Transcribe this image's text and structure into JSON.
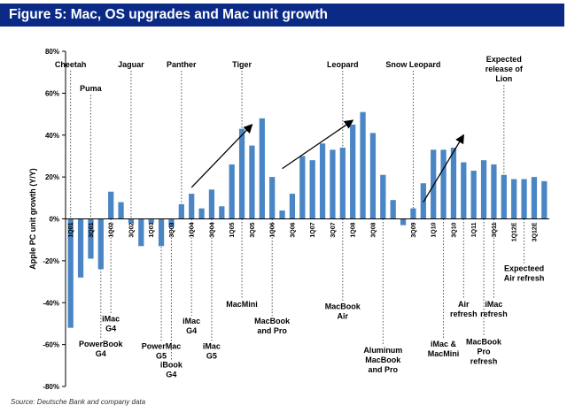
{
  "header": {
    "title": "Figure 5: Mac, OS upgrades and Mac unit growth"
  },
  "source": "Source: Deutsche Bank and company data",
  "colors": {
    "title_bg": "#0a2a86",
    "bar": "#4a86c5",
    "text": "#000000"
  },
  "chart_data": {
    "type": "bar",
    "title": "Figure 5: Mac, OS upgrades and Mac unit growth",
    "ylabel": "Apple PC unit growth (Y/Y)",
    "xlabel": "",
    "ylim": [
      -80,
      80
    ],
    "yticks": [
      "-80%",
      "-60%",
      "-40%",
      "-20%",
      "0%",
      "20%",
      "40%",
      "60%",
      "80%"
    ],
    "grid": false,
    "bars": [
      {
        "label": "1Q01",
        "value": -52
      },
      {
        "label": "",
        "value": -28
      },
      {
        "label": "3Q01",
        "value": -19
      },
      {
        "label": "",
        "value": -24
      },
      {
        "label": "1Q02",
        "value": 13
      },
      {
        "label": "",
        "value": 8
      },
      {
        "label": "3Q02",
        "value": -2
      },
      {
        "label": "",
        "value": -13
      },
      {
        "label": "1Q03",
        "value": -2
      },
      {
        "label": "",
        "value": -13
      },
      {
        "label": "3Q03",
        "value": -4
      },
      {
        "label": "",
        "value": 7
      },
      {
        "label": "1Q04",
        "value": 12
      },
      {
        "label": "",
        "value": 5
      },
      {
        "label": "3Q04",
        "value": 14
      },
      {
        "label": "",
        "value": 6
      },
      {
        "label": "1Q05",
        "value": 26
      },
      {
        "label": "",
        "value": 43
      },
      {
        "label": "3Q05",
        "value": 35
      },
      {
        "label": "",
        "value": 48
      },
      {
        "label": "1Q06",
        "value": 20
      },
      {
        "label": "",
        "value": 4
      },
      {
        "label": "3Q06",
        "value": 12
      },
      {
        "label": "",
        "value": 30
      },
      {
        "label": "1Q07",
        "value": 28
      },
      {
        "label": "",
        "value": 36
      },
      {
        "label": "3Q07",
        "value": 33
      },
      {
        "label": "",
        "value": 34
      },
      {
        "label": "1Q08",
        "value": 45
      },
      {
        "label": "",
        "value": 51
      },
      {
        "label": "3Q08",
        "value": 41
      },
      {
        "label": "",
        "value": 21
      },
      {
        "label": "",
        "value": 9
      },
      {
        "label": "",
        "value": -3
      },
      {
        "label": "3Q09",
        "value": 5
      },
      {
        "label": "",
        "value": 17
      },
      {
        "label": "1Q10",
        "value": 33
      },
      {
        "label": "",
        "value": 33
      },
      {
        "label": "3Q10",
        "value": 34
      },
      {
        "label": "",
        "value": 27
      },
      {
        "label": "1Q11",
        "value": 23
      },
      {
        "label": "",
        "value": 28
      },
      {
        "label": "3Q11",
        "value": 26
      },
      {
        "label": "",
        "value": 21
      },
      {
        "label": "1Q12E",
        "value": 19
      },
      {
        "label": "",
        "value": 19
      },
      {
        "label": "3Q12E",
        "value": 20
      },
      {
        "label": "",
        "value": 18
      }
    ],
    "annotations": [
      {
        "text": [
          "Cheetah"
        ],
        "bar": 0,
        "pos": "top",
        "row": 0
      },
      {
        "text": [
          "Puma"
        ],
        "bar": 2,
        "pos": "top",
        "row": 1
      },
      {
        "text": [
          "Jaguar"
        ],
        "bar": 6,
        "pos": "top",
        "row": 0
      },
      {
        "text": [
          "Panther"
        ],
        "bar": 11,
        "pos": "top",
        "row": 0
      },
      {
        "text": [
          "Tiger"
        ],
        "bar": 17,
        "pos": "top",
        "row": 0
      },
      {
        "text": [
          "Leopard"
        ],
        "bar": 27,
        "pos": "top",
        "row": 0
      },
      {
        "text": [
          "Snow Leopard"
        ],
        "bar": 34,
        "pos": "top",
        "row": 0
      },
      {
        "text": [
          "Expected",
          "release of",
          "Lion"
        ],
        "bar": 43,
        "pos": "top",
        "row": -1
      },
      {
        "text": [
          "PowerBook",
          "G4"
        ],
        "bar": 3,
        "pos": "bottom",
        "y": -61
      },
      {
        "text": [
          "iMac",
          "G4"
        ],
        "bar": 4,
        "pos": "bottom",
        "y": -49
      },
      {
        "text": [
          "PowerMac",
          "G5"
        ],
        "bar": 9,
        "pos": "bottom",
        "y": -62
      },
      {
        "text": [
          "iBook",
          "G4"
        ],
        "bar": 10,
        "pos": "bottom",
        "y": -71
      },
      {
        "text": [
          "iMac",
          "G4"
        ],
        "bar": 12,
        "pos": "bottom",
        "y": -50
      },
      {
        "text": [
          "iMac",
          "G5"
        ],
        "bar": 14,
        "pos": "bottom",
        "y": -62
      },
      {
        "text": [
          "MacMini"
        ],
        "bar": 17,
        "pos": "bottom",
        "y": -42
      },
      {
        "text": [
          "MacBook",
          "and Pro"
        ],
        "bar": 20,
        "pos": "bottom",
        "y": -50
      },
      {
        "text": [
          "MacBook",
          "Air"
        ],
        "bar": 27,
        "pos": "bottom",
        "y": -43
      },
      {
        "text": [
          "Aluminum",
          "MacBook",
          "and Pro"
        ],
        "bar": 31,
        "pos": "bottom",
        "y": -64
      },
      {
        "text": [
          "iMac &",
          "MacMini"
        ],
        "bar": 37,
        "pos": "bottom",
        "y": -61
      },
      {
        "text": [
          "Air",
          "refresh"
        ],
        "bar": 39,
        "pos": "bottom",
        "y": -42
      },
      {
        "text": [
          "MacBook",
          "Pro",
          "refresh"
        ],
        "bar": 41,
        "pos": "bottom",
        "y": -60
      },
      {
        "text": [
          "iMac",
          "refresh"
        ],
        "bar": 42,
        "pos": "bottom",
        "y": -42
      },
      {
        "text": [
          "Expecteed",
          "Air refresh"
        ],
        "bar": 45,
        "pos": "bottom",
        "y": -25
      }
    ],
    "arrows": [
      {
        "from": [
          12,
          15
        ],
        "to": [
          18,
          45
        ]
      },
      {
        "from": [
          21,
          24
        ],
        "to": [
          28,
          47
        ]
      },
      {
        "from": [
          35,
          8
        ],
        "to": [
          39,
          40
        ]
      }
    ]
  }
}
